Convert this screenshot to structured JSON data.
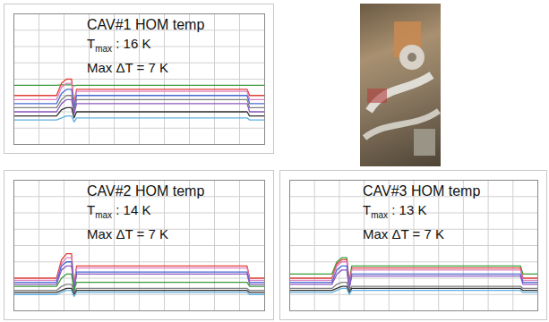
{
  "chart_data": [
    {
      "type": "line",
      "annotations": [
        "CAV#1 HOM temp",
        "Tmax : 16 K",
        "Max ΔT = 7 K"
      ],
      "x": [
        0,
        17,
        19,
        21,
        23,
        24,
        25,
        26,
        93,
        94,
        100
      ],
      "xlim": [
        0,
        100
      ],
      "ylim": [
        0,
        32
      ],
      "xticks": [
        0,
        10,
        20,
        30,
        40,
        50,
        60,
        70,
        80,
        90,
        100
      ],
      "yticks": [
        0,
        4,
        8,
        12,
        16,
        20,
        24,
        28,
        32
      ],
      "grid": true,
      "tick_labels": false,
      "series": [
        {
          "color": "#3a9a3a",
          "values": [
            14.5,
            14.5,
            14.6,
            14.6,
            14.6,
            14.4,
            14.5,
            14.5,
            14.5,
            14.5,
            14.5
          ]
        },
        {
          "color": "#e0403a",
          "values": [
            12,
            12,
            15,
            16,
            16,
            10,
            13.5,
            13.5,
            13.5,
            12,
            12
          ]
        },
        {
          "color": "#e080c0",
          "values": [
            11,
            11,
            14,
            15,
            15,
            9.5,
            13,
            13,
            13,
            11,
            11
          ]
        },
        {
          "color": "#4a6ad0",
          "values": [
            10,
            10,
            12.5,
            13.5,
            13.5,
            9,
            12,
            12,
            12,
            10,
            10
          ]
        },
        {
          "color": "#808080",
          "values": [
            9,
            9,
            11,
            12,
            12,
            8,
            11,
            11,
            11,
            9,
            9
          ]
        },
        {
          "color": "#8a5ac0",
          "values": [
            8,
            8,
            10,
            11,
            11,
            7.5,
            10,
            10,
            10,
            8,
            8
          ]
        },
        {
          "color": "#303030",
          "values": [
            7,
            7,
            8.5,
            9,
            9,
            6.5,
            8,
            8,
            8,
            7,
            7
          ]
        },
        {
          "color": "#60b0e0",
          "values": [
            6,
            6,
            6.5,
            7,
            7,
            5.5,
            6.5,
            6.5,
            6.5,
            6,
            6
          ]
        }
      ]
    },
    {
      "type": "line",
      "annotations": [
        "CAV#2 HOM temp",
        "Tmax : 14 K",
        "Max ΔT = 7 K"
      ],
      "x": [
        0,
        17,
        19,
        21,
        23,
        24,
        25,
        26,
        93,
        94,
        100
      ],
      "xlim": [
        0,
        100
      ],
      "ylim": [
        0,
        32
      ],
      "xticks": [
        0,
        10,
        20,
        30,
        40,
        50,
        60,
        70,
        80,
        90,
        100
      ],
      "yticks": [
        0,
        4,
        8,
        12,
        16,
        20,
        24,
        28,
        32
      ],
      "grid": true,
      "tick_labels": false,
      "series": [
        {
          "color": "#e0403a",
          "values": [
            8,
            8,
            12.5,
            14,
            14,
            6,
            11,
            11,
            11,
            8,
            8
          ]
        },
        {
          "color": "#e080c0",
          "values": [
            7.5,
            7.5,
            11.5,
            13,
            13,
            5.5,
            10.5,
            10.5,
            10.5,
            7.5,
            7.5
          ]
        },
        {
          "color": "#4a6ad0",
          "values": [
            7,
            7,
            11,
            12,
            12,
            5,
            9.5,
            9.5,
            9.5,
            7,
            7
          ]
        },
        {
          "color": "#8a5ac0",
          "values": [
            6.5,
            6.5,
            10,
            11,
            11,
            5,
            9,
            9,
            9,
            6.5,
            6.5
          ]
        },
        {
          "color": "#3a9a3a",
          "values": [
            6,
            6,
            8,
            9,
            9,
            5,
            7,
            7,
            7,
            6,
            6
          ]
        },
        {
          "color": "#808080",
          "values": [
            5,
            5,
            6,
            6.5,
            6.5,
            4.5,
            5.5,
            5.5,
            5.5,
            5,
            5
          ]
        },
        {
          "color": "#303030",
          "values": [
            4.5,
            4.5,
            5,
            5.5,
            5.5,
            4,
            5,
            5,
            5,
            4.5,
            4.5
          ]
        },
        {
          "color": "#60b0e0",
          "values": [
            4,
            4,
            4.5,
            5,
            5,
            3.5,
            4.5,
            4.5,
            4.5,
            4,
            4
          ]
        }
      ]
    },
    {
      "type": "line",
      "annotations": [
        "CAV#3 HOM temp",
        "Tmax : 13 K",
        "Max ΔT = 7 K"
      ],
      "x": [
        0,
        17,
        19,
        21,
        23,
        24,
        25,
        26,
        93,
        94,
        100
      ],
      "xlim": [
        0,
        100
      ],
      "ylim": [
        0,
        32
      ],
      "xticks": [
        0,
        10,
        20,
        30,
        40,
        50,
        60,
        70,
        80,
        90,
        100
      ],
      "yticks": [
        0,
        4,
        8,
        12,
        16,
        20,
        24,
        28,
        32
      ],
      "grid": true,
      "tick_labels": false,
      "series": [
        {
          "color": "#3a9a3a",
          "values": [
            9,
            9,
            12,
            13,
            13,
            7,
            11,
            11,
            11,
            9,
            9
          ]
        },
        {
          "color": "#e0403a",
          "values": [
            8,
            8,
            11.5,
            12.5,
            12.5,
            6.5,
            10.5,
            10.5,
            10.5,
            8,
            8
          ]
        },
        {
          "color": "#e080c0",
          "values": [
            7.5,
            7.5,
            11,
            12,
            12,
            6,
            10,
            10,
            10,
            7.5,
            7.5
          ]
        },
        {
          "color": "#4a6ad0",
          "values": [
            7,
            7,
            10,
            11,
            11,
            5.5,
            9,
            9,
            9,
            7,
            7
          ]
        },
        {
          "color": "#8a5ac0",
          "values": [
            6.5,
            6.5,
            9,
            10,
            10,
            5.5,
            8.5,
            8.5,
            8.5,
            6.5,
            6.5
          ]
        },
        {
          "color": "#808080",
          "values": [
            5.5,
            5.5,
            6.5,
            7,
            7,
            5,
            6,
            6,
            6,
            5.5,
            5.5
          ]
        },
        {
          "color": "#303030",
          "values": [
            5,
            5,
            5.5,
            6,
            6,
            4.5,
            5.5,
            5.5,
            5.5,
            5,
            5
          ]
        },
        {
          "color": "#60b0e0",
          "values": [
            4.5,
            4.5,
            5,
            5.5,
            5.5,
            4,
            5,
            5,
            5,
            4.5,
            4.5
          ]
        }
      ]
    }
  ]
}
